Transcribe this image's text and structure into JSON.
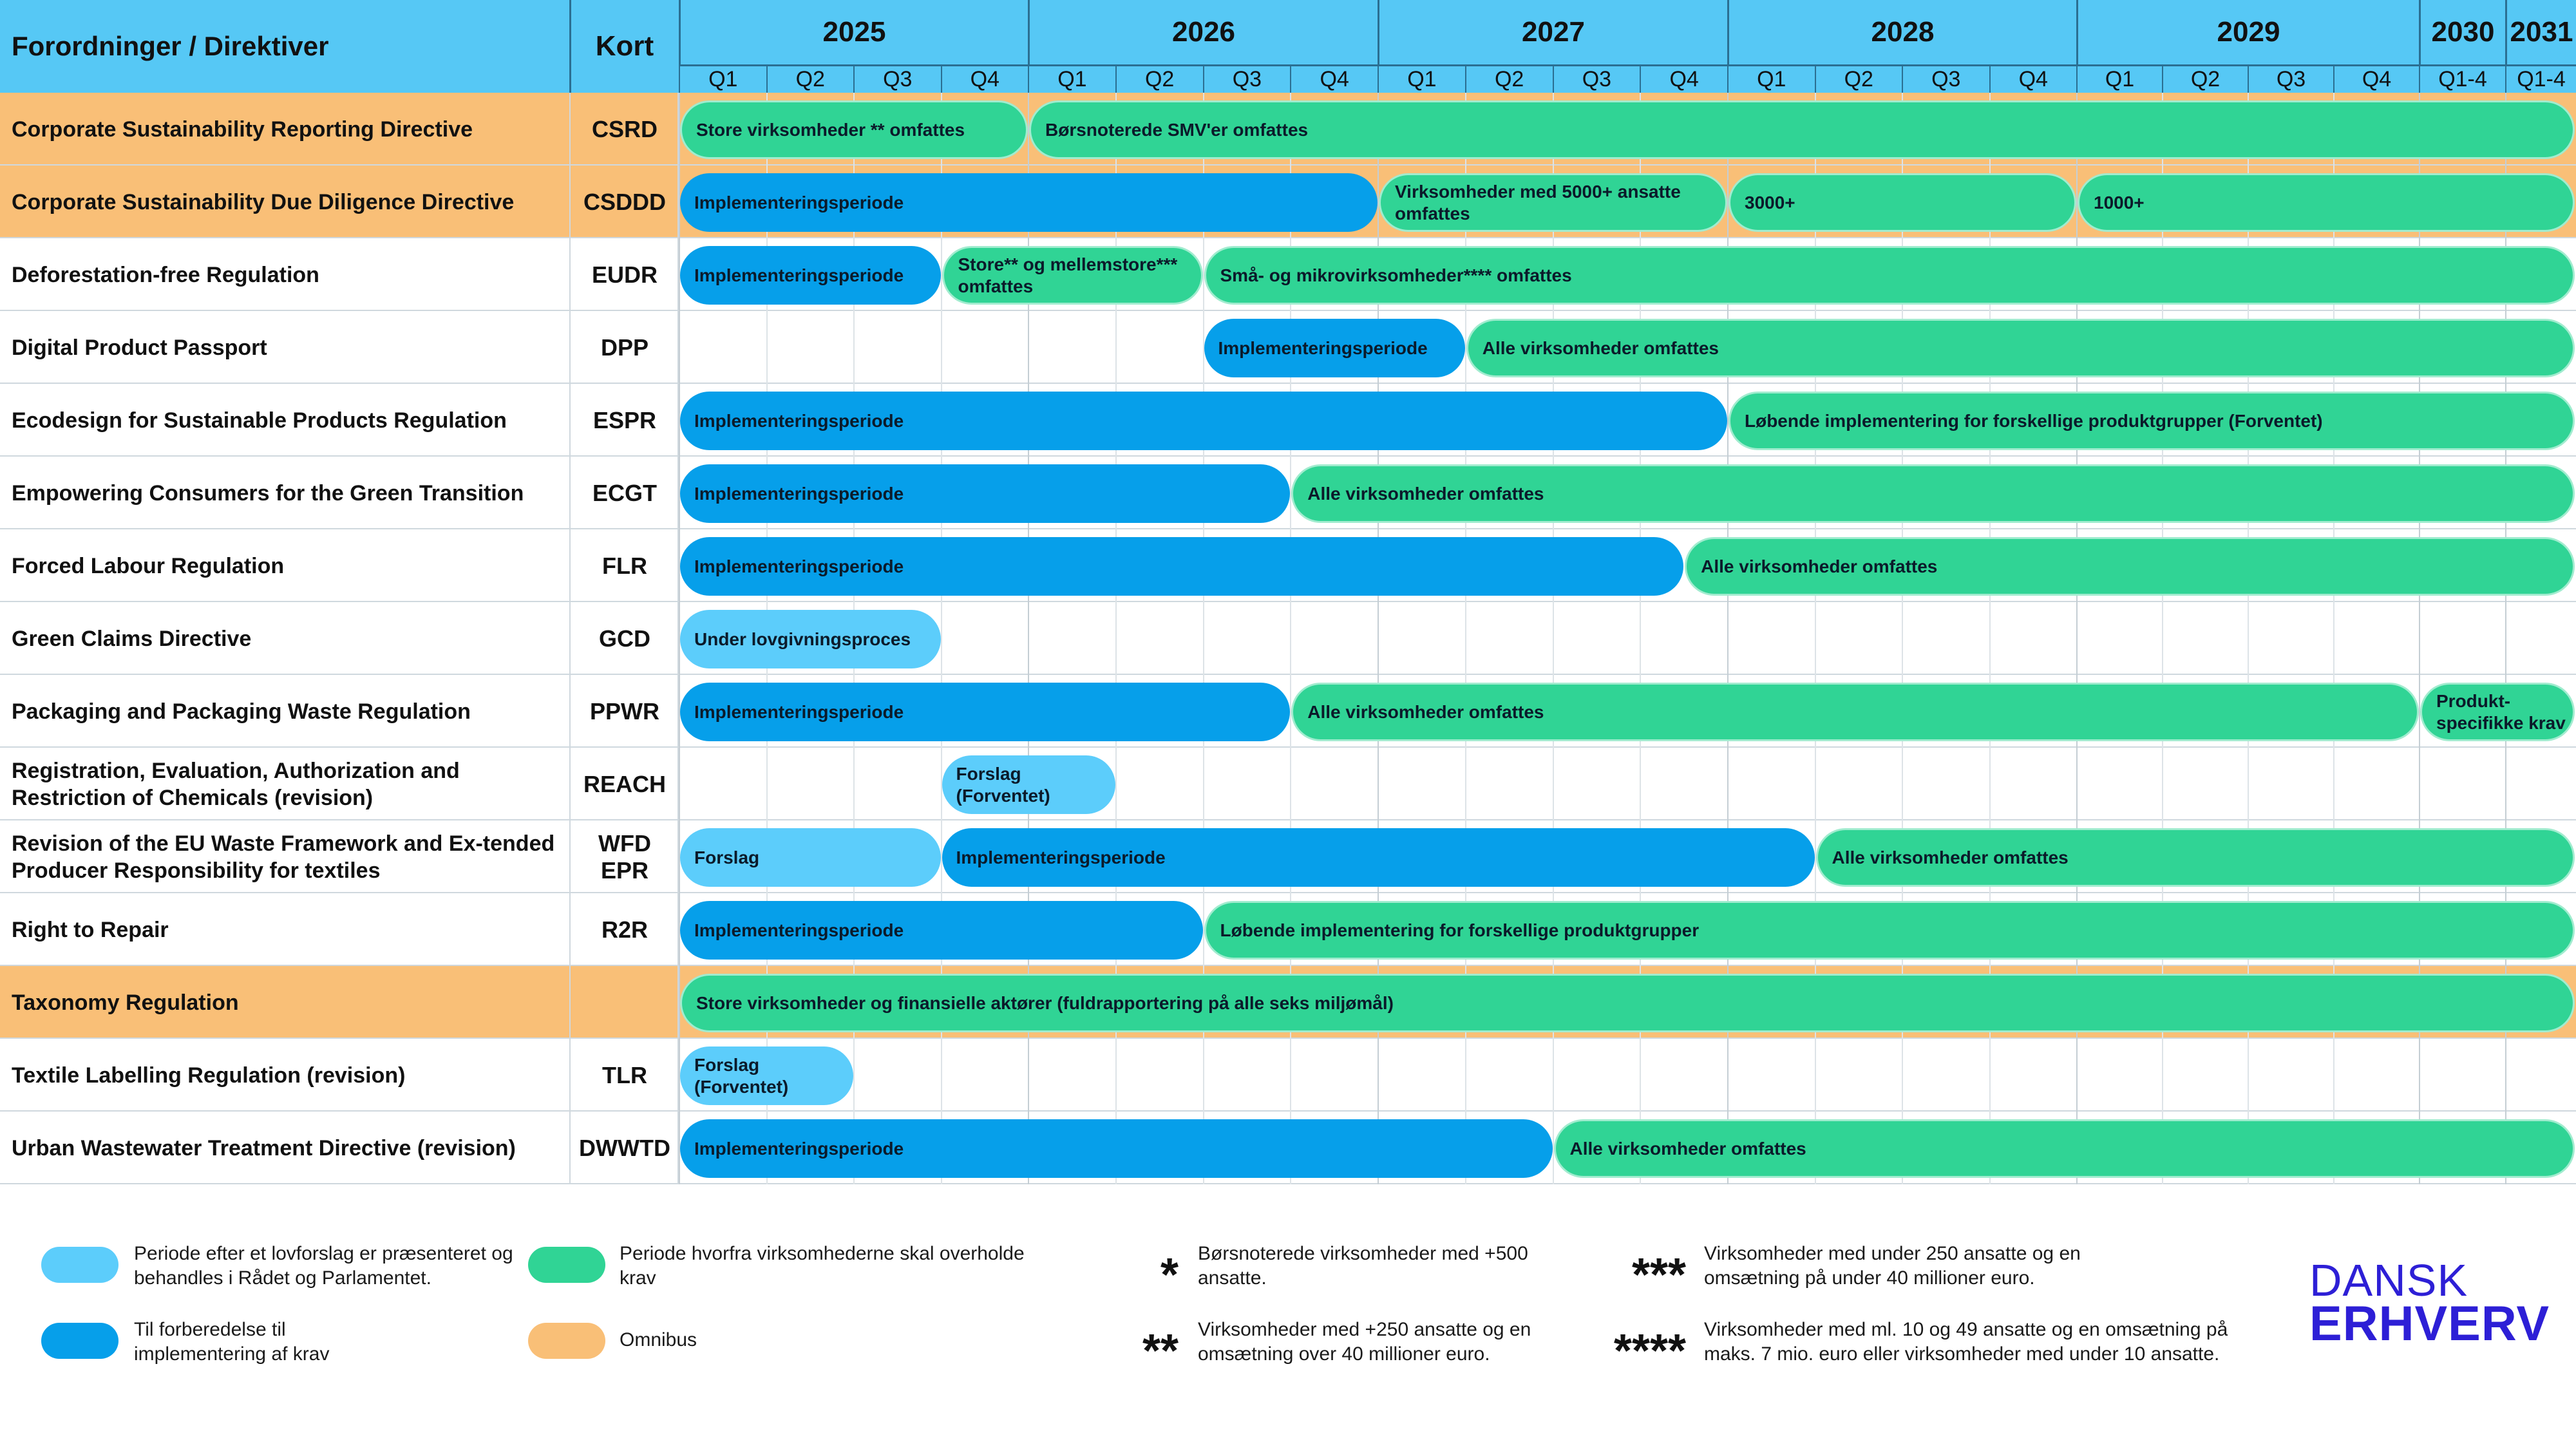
{
  "header": {
    "col1": "Forordninger / Direktiver",
    "col2": "Kort"
  },
  "years": [
    "2025",
    "2026",
    "2027",
    "2028",
    "2029",
    "2030",
    "2031"
  ],
  "quarters": [
    "Q1",
    "Q2",
    "Q3",
    "Q4",
    "Q1",
    "Q2",
    "Q3",
    "Q4",
    "Q1",
    "Q2",
    "Q3",
    "Q4",
    "Q1",
    "Q2",
    "Q3",
    "Q4",
    "Q1",
    "Q2",
    "Q3",
    "Q4",
    "Q1-4",
    "Q1-4"
  ],
  "colors": {
    "header": "#56c8f5",
    "omnibus": "#f9bf77",
    "lovforslag": "#5ccdfb",
    "implementering": "#069fea",
    "krav": "#30d495",
    "logo": "#2d1fd6"
  },
  "chart_data": {
    "type": "table",
    "timeline_units": "quarters from 2025 Q1 (0) to end of 2031 (22); 2030 and 2031 each shown as one column",
    "rows": [
      {
        "name": "Corporate Sustainability Reporting Directive",
        "short": "CSRD",
        "omnibus": true,
        "bars": [
          {
            "start": 0,
            "end": 4,
            "kind": "krav",
            "label": "Store virksomheder ** omfattes"
          },
          {
            "start": 4,
            "end": 22,
            "kind": "krav",
            "label": "Børsnoterede SMV'er omfattes"
          }
        ]
      },
      {
        "name": "Corporate Sustainability Due Diligence Directive",
        "short": "CSDDD",
        "omnibus": true,
        "bars": [
          {
            "start": 0,
            "end": 8,
            "kind": "impl",
            "label": "Implementeringsperiode"
          },
          {
            "start": 8,
            "end": 12,
            "kind": "krav",
            "label": "Virksomheder med 5000+ ansatte omfattes"
          },
          {
            "start": 12,
            "end": 16,
            "kind": "krav",
            "label": "3000+"
          },
          {
            "start": 16,
            "end": 22,
            "kind": "krav",
            "label": "1000+"
          }
        ]
      },
      {
        "name": "Deforestation-free Regulation",
        "short": "EUDR",
        "omnibus": false,
        "bars": [
          {
            "start": 0,
            "end": 3,
            "kind": "impl",
            "label": "Implementeringsperiode"
          },
          {
            "start": 3,
            "end": 6,
            "kind": "krav",
            "label": "Store** og mellemstore*** omfattes"
          },
          {
            "start": 6,
            "end": 22,
            "kind": "krav",
            "label": "Små- og mikrovirksomheder**** omfattes"
          }
        ]
      },
      {
        "name": "Digital Product Passport",
        "short": "DPP",
        "omnibus": false,
        "bars": [
          {
            "start": 6,
            "end": 9,
            "kind": "impl",
            "label": "Implementeringsperiode"
          },
          {
            "start": 9,
            "end": 22,
            "kind": "krav",
            "label": "Alle virksomheder omfattes"
          }
        ]
      },
      {
        "name": "Ecodesign for Sustainable Products Regulation",
        "short": "ESPR",
        "omnibus": false,
        "bars": [
          {
            "start": 0,
            "end": 12,
            "kind": "impl",
            "label": "Implementeringsperiode"
          },
          {
            "start": 12,
            "end": 22,
            "kind": "krav",
            "label": "Løbende implementering for forskellige produktgrupper (Forventet)"
          }
        ]
      },
      {
        "name": "Empowering Consumers for the Green Transition",
        "short": "ECGT",
        "omnibus": false,
        "bars": [
          {
            "start": 0,
            "end": 7,
            "kind": "impl",
            "label": "Implementeringsperiode"
          },
          {
            "start": 7,
            "end": 22,
            "kind": "krav",
            "label": "Alle virksomheder omfattes"
          }
        ]
      },
      {
        "name": "Forced Labour Regulation",
        "short": "FLR",
        "omnibus": false,
        "bars": [
          {
            "start": 0,
            "end": 11.5,
            "kind": "impl",
            "label": "Implementeringsperiode"
          },
          {
            "start": 11.5,
            "end": 22,
            "kind": "krav",
            "label": "Alle virksomheder omfattes"
          }
        ]
      },
      {
        "name": "Green Claims Directive",
        "short": "GCD",
        "omnibus": false,
        "bars": [
          {
            "start": 0,
            "end": 3,
            "kind": "lovf",
            "label": "Under lovgivningsproces"
          }
        ]
      },
      {
        "name": "Packaging and Packaging Waste Regulation",
        "short": "PPWR",
        "omnibus": false,
        "bars": [
          {
            "start": 0,
            "end": 7,
            "kind": "impl",
            "label": "Implementeringsperiode"
          },
          {
            "start": 7,
            "end": 20,
            "kind": "krav",
            "label": "Alle virksomheder omfattes"
          },
          {
            "start": 20,
            "end": 22,
            "kind": "krav",
            "label": "Produkt-specifikke krav"
          }
        ]
      },
      {
        "name": "Registration, Evaluation, Authorization and Restriction of Chemicals (revision)",
        "short": "REACH",
        "omnibus": false,
        "bars": [
          {
            "start": 3,
            "end": 5,
            "kind": "lovf",
            "label": "Forslag (Forventet)"
          }
        ]
      },
      {
        "name": "Revision of the EU Waste Framework and Ex-tended Producer Responsibility for textiles",
        "short": "WFD EPR",
        "omnibus": false,
        "bars": [
          {
            "start": 0,
            "end": 3,
            "kind": "lovf",
            "label": "Forslag"
          },
          {
            "start": 3,
            "end": 13,
            "kind": "impl",
            "label": "Implementeringsperiode"
          },
          {
            "start": 13,
            "end": 22,
            "kind": "krav",
            "label": "Alle virksomheder omfattes"
          }
        ]
      },
      {
        "name": "Right to Repair",
        "short": "R2R",
        "omnibus": false,
        "bars": [
          {
            "start": 0,
            "end": 6,
            "kind": "impl",
            "label": "Implementeringsperiode"
          },
          {
            "start": 6,
            "end": 22,
            "kind": "krav",
            "label": "Løbende implementering for forskellige produktgrupper"
          }
        ]
      },
      {
        "name": "Taxonomy Regulation",
        "short": "",
        "omnibus": true,
        "bars": [
          {
            "start": 0,
            "end": 22,
            "kind": "krav",
            "label": "Store virksomheder og finansielle aktører (fuldrapportering på alle seks miljømål)"
          }
        ]
      },
      {
        "name": "Textile Labelling Regulation (revision)",
        "short": "TLR",
        "omnibus": false,
        "bars": [
          {
            "start": 0,
            "end": 2,
            "kind": "lovf",
            "label": "Forslag (Forventet)"
          }
        ]
      },
      {
        "name": "Urban Wastewater Treatment Directive (revision)",
        "short": "DWWTD",
        "omnibus": false,
        "bars": [
          {
            "start": 0,
            "end": 10,
            "kind": "impl",
            "label": "Implementeringsperiode"
          },
          {
            "start": 10,
            "end": 22,
            "kind": "krav",
            "label": "Alle virksomheder omfattes"
          }
        ]
      }
    ]
  },
  "legend": {
    "lovf": "Periode efter et lovforslag er præsenteret og behandles i Rådet og Parlamentet.",
    "impl": "Til forberedelse til implementering af krav",
    "krav": "Periode hvorfra virksomhederne skal overholde krav",
    "omnibus": "Omnibus",
    "star1_symbol": "*",
    "star1_text": "Børsnoterede virksomheder med +500 ansatte.",
    "star2_symbol": "**",
    "star2_text": "Virksomheder med +250 ansatte og en omsætning over 40 millioner euro.",
    "star3_symbol": "***",
    "star3_text": "Virksomheder med under 250 ansatte og en omsætning på under 40 millioner euro.",
    "star4_symbol": "****",
    "star4_text": "Virksomheder med ml. 10 og 49 ansatte og en omsætning på maks. 7 mio. euro eller virksomheder med under 10 ansatte."
  },
  "logo": {
    "line1": "DANSK",
    "line2": "ERHVERV"
  }
}
